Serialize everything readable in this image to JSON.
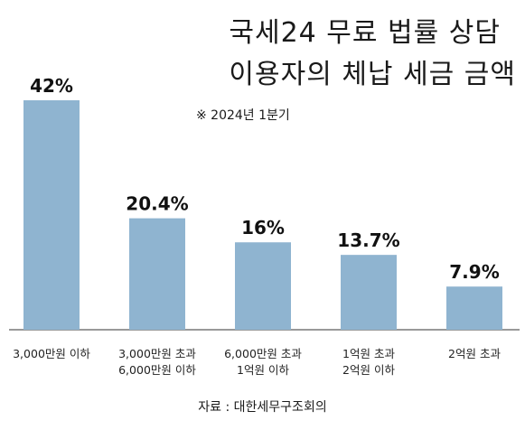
{
  "title_lines": [
    "국세24 무료 법률 상담",
    "이용자의 체납 세금 금액"
  ],
  "note": "※ 2024년 1분기",
  "source": "자료 : 대한세무구조회의",
  "chart_data": {
    "type": "bar",
    "title": "국세24 무료 법률 상담 이용자의 체납 세금 금액",
    "subtitle": "※ 2024년 1분기",
    "categories": [
      [
        "3,000만원 이하"
      ],
      [
        "3,000만원 초과",
        "6,000만원 이하"
      ],
      [
        "6,000만원 초과",
        "1억원 이하"
      ],
      [
        "1억원 초과",
        "2억원 이하"
      ],
      [
        "2억원 초과"
      ]
    ],
    "values": [
      42,
      20.4,
      16,
      13.7,
      7.9
    ],
    "value_labels": [
      "42%",
      "20.4%",
      "16%",
      "13.7%",
      "7.9%"
    ],
    "unit": "%",
    "ylim": [
      0,
      42
    ],
    "grid": false,
    "bar_color": "#8fb4d0"
  }
}
